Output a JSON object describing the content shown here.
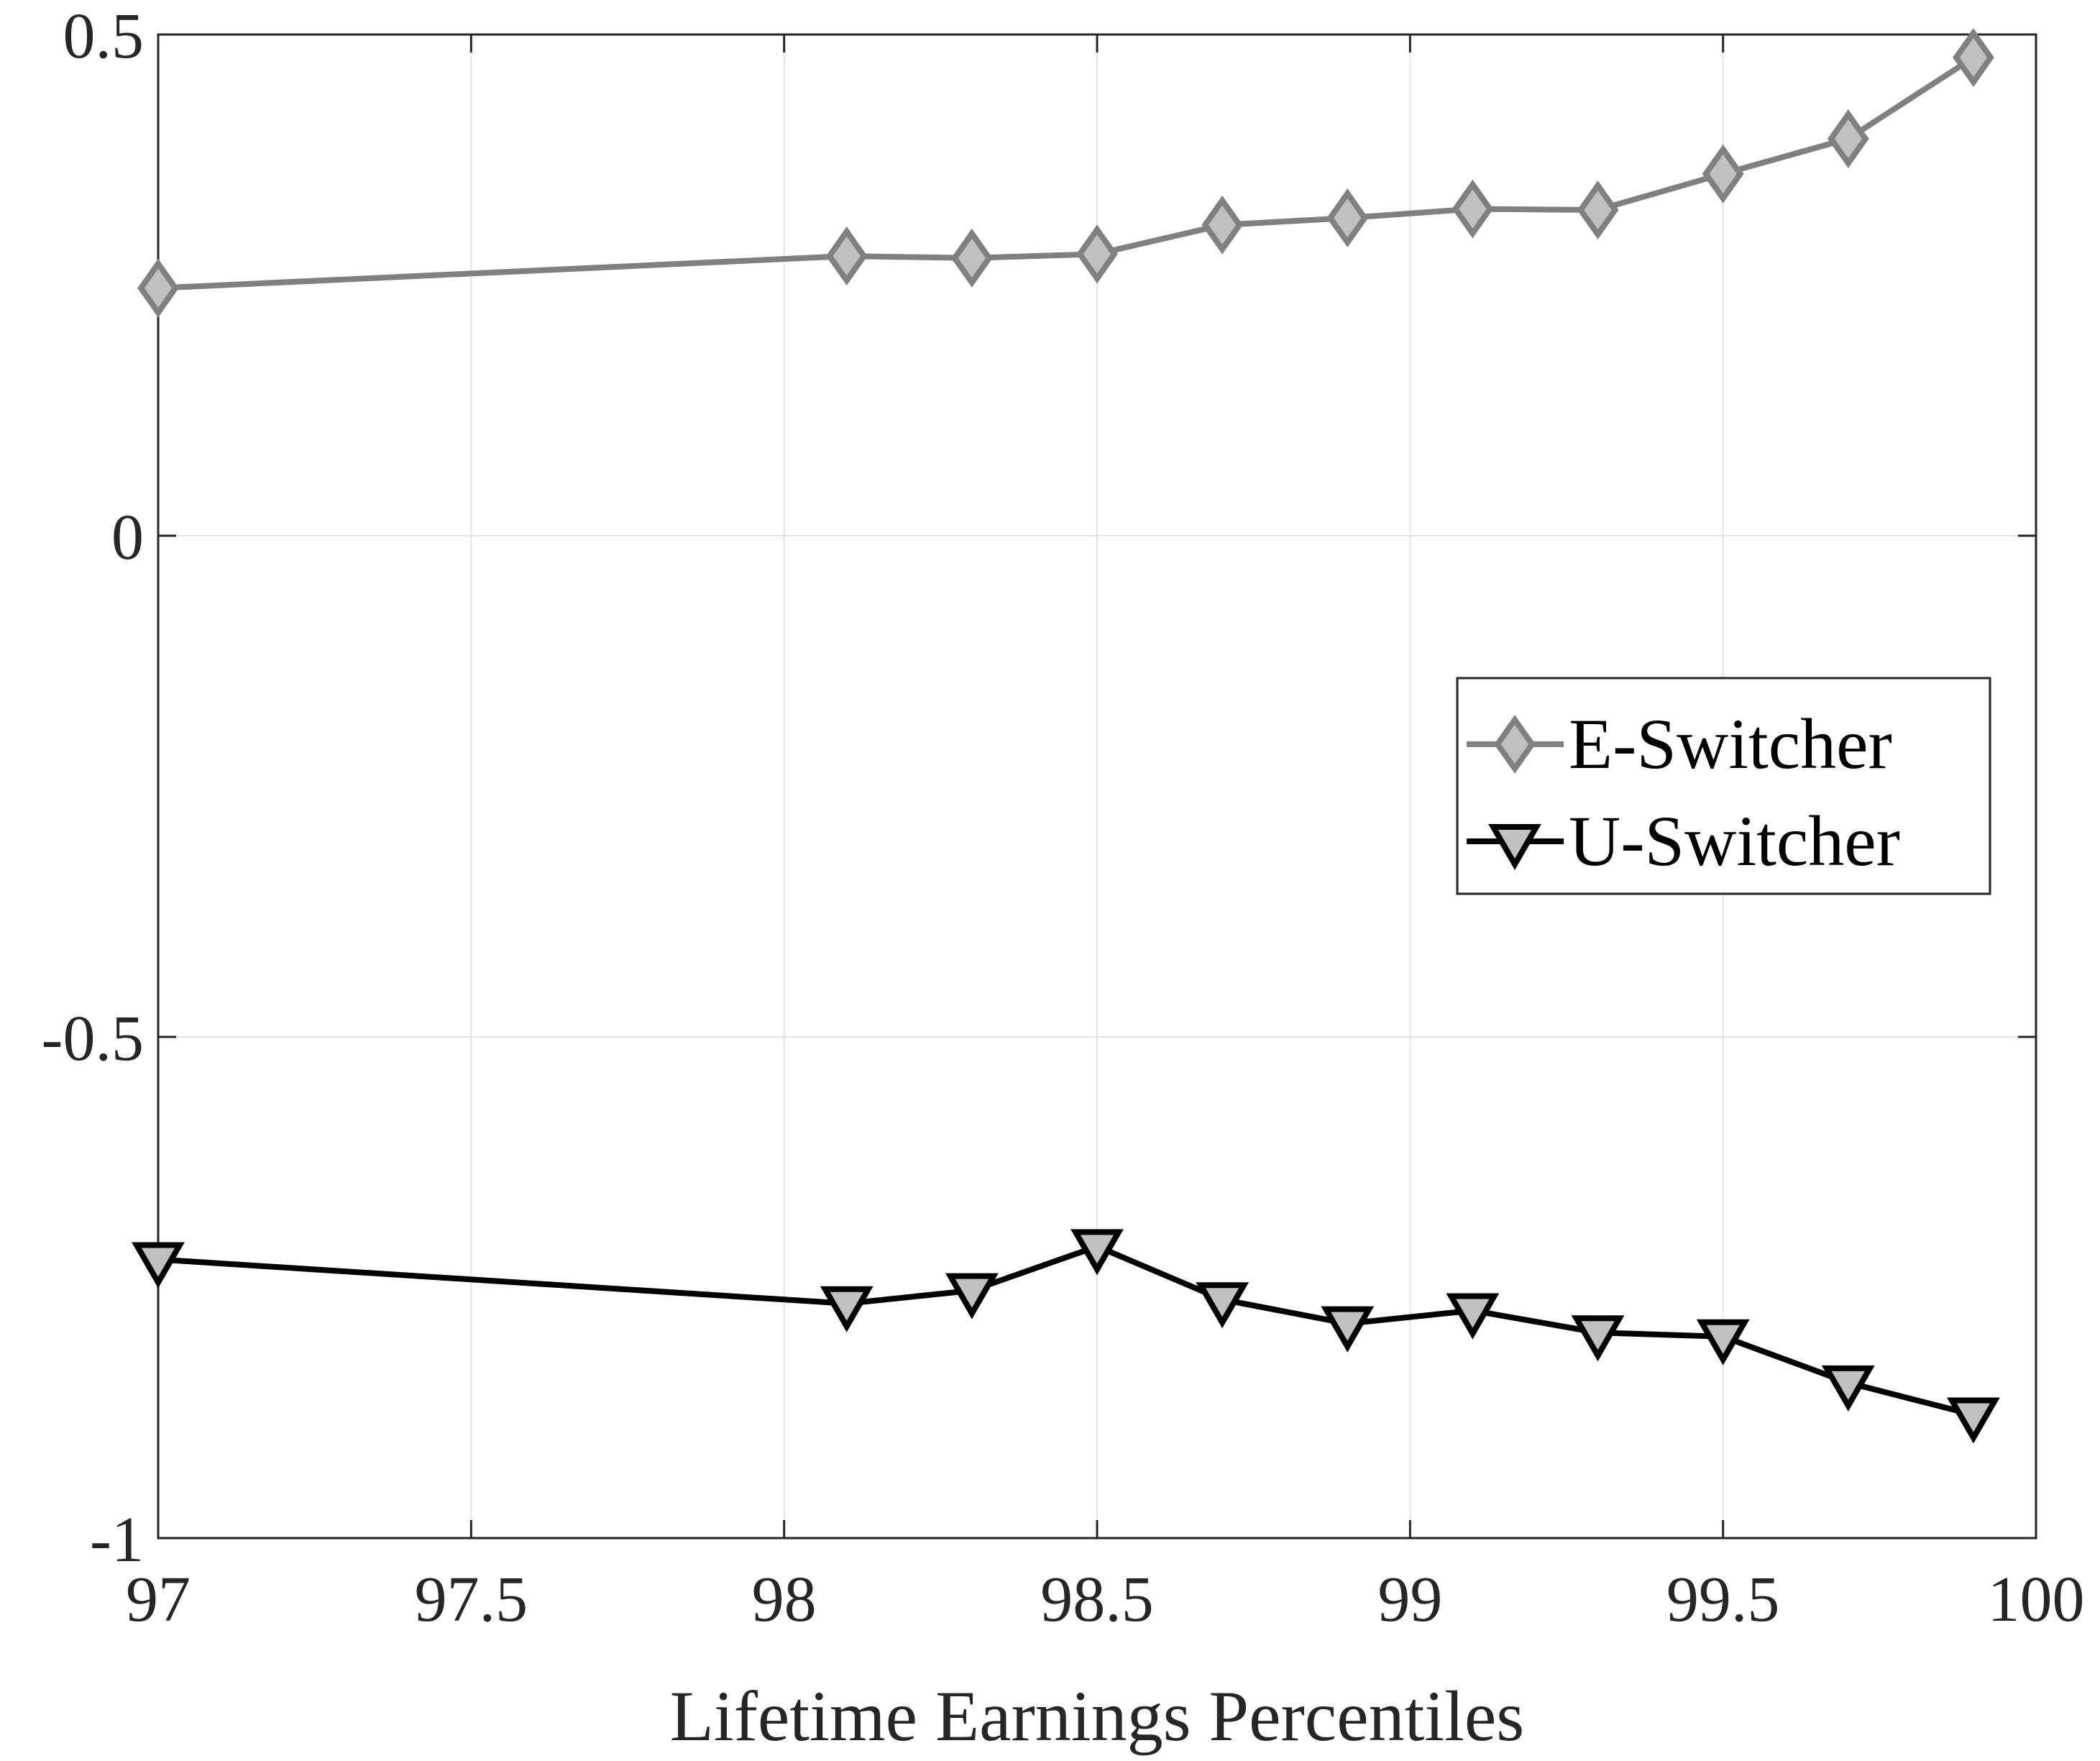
{
  "chart_data": {
    "type": "line",
    "title": "",
    "xlabel": "Lifetime Earnings Percentiles",
    "ylabel": "",
    "xlim": [
      97,
      100
    ],
    "ylim": [
      -1,
      0.5
    ],
    "xticks": [
      "97",
      "97.5",
      "98",
      "98.5",
      "99",
      "99.5",
      "100"
    ],
    "yticks": [
      "-1",
      "-0.5",
      "0",
      "0.5"
    ],
    "grid": true,
    "legend_position": "right",
    "x": [
      97.0,
      98.1,
      98.3,
      98.5,
      98.7,
      98.9,
      99.1,
      99.3,
      99.5,
      99.7,
      99.9
    ],
    "series": [
      {
        "name": "E-Switcher",
        "marker": "diamond",
        "color": "#808080",
        "marker_fill": "#c0c0c0",
        "values": [
          0.247,
          0.279,
          0.277,
          0.281,
          0.31,
          0.317,
          0.326,
          0.325,
          0.361,
          0.396,
          0.477
        ]
      },
      {
        "name": "U-Switcher",
        "marker": "triangle-down",
        "color": "#000000",
        "marker_fill": "#c0c0c0",
        "values": [
          -0.722,
          -0.766,
          -0.753,
          -0.709,
          -0.762,
          -0.786,
          -0.773,
          -0.795,
          -0.799,
          -0.845,
          -0.877
        ]
      }
    ]
  }
}
